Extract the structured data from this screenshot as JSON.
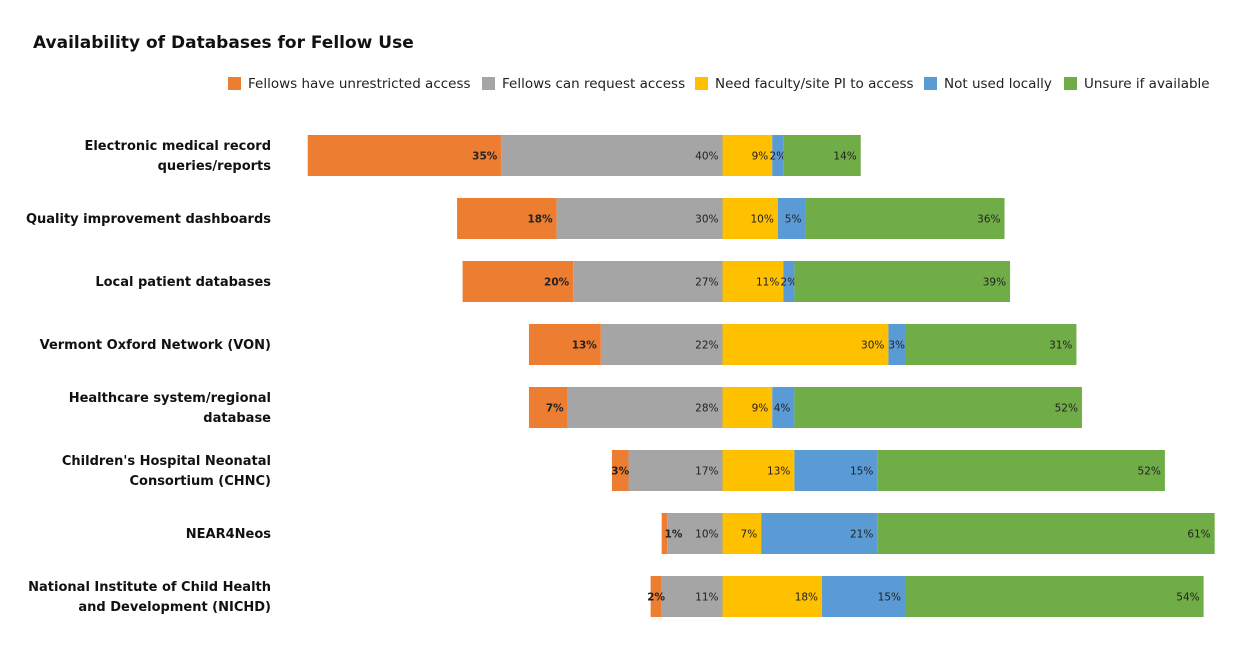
{
  "chart_data": {
    "type": "bar",
    "orientation": "horizontal",
    "stacked": "diverging",
    "title": "Availability of Databases for Fellow Use",
    "legend_position": "top-right",
    "grid": false,
    "categories": [
      [
        "Electronic medical record",
        "queries/reports"
      ],
      [
        "Quality improvement dashboards"
      ],
      [
        "Local patient databases"
      ],
      [
        "Vermont Oxford Network (VON)"
      ],
      [
        "Healthcare system/regional",
        "database"
      ],
      [
        "Children's Hospital Neonatal",
        "Consortium (CHNC)"
      ],
      [
        "NEAR4Neos"
      ],
      [
        "National Institute of Child Health",
        "and Development (NICHD)"
      ]
    ],
    "series": [
      {
        "name": "Fellows have unrestricted access",
        "color": "#ED7D31",
        "side": "left",
        "values": [
          35,
          18,
          20,
          13,
          7,
          3,
          1,
          2
        ]
      },
      {
        "name": "Fellows can request access",
        "color": "#A5A5A5",
        "side": "left",
        "values": [
          40,
          30,
          27,
          22,
          28,
          17,
          10,
          11
        ]
      },
      {
        "name": "Need faculty/site PI to access",
        "color": "#FFC000",
        "side": "right",
        "values": [
          9,
          10,
          11,
          30,
          9,
          13,
          7,
          18
        ]
      },
      {
        "name": "Not used locally",
        "color": "#5B9BD5",
        "side": "right",
        "values": [
          2,
          5,
          2,
          3,
          4,
          15,
          21,
          15
        ]
      },
      {
        "name": "Unsure if available",
        "color": "#70AD47",
        "side": "right",
        "values": [
          14,
          36,
          39,
          31,
          52,
          52,
          61,
          54
        ]
      }
    ],
    "value_suffix": "%"
  }
}
